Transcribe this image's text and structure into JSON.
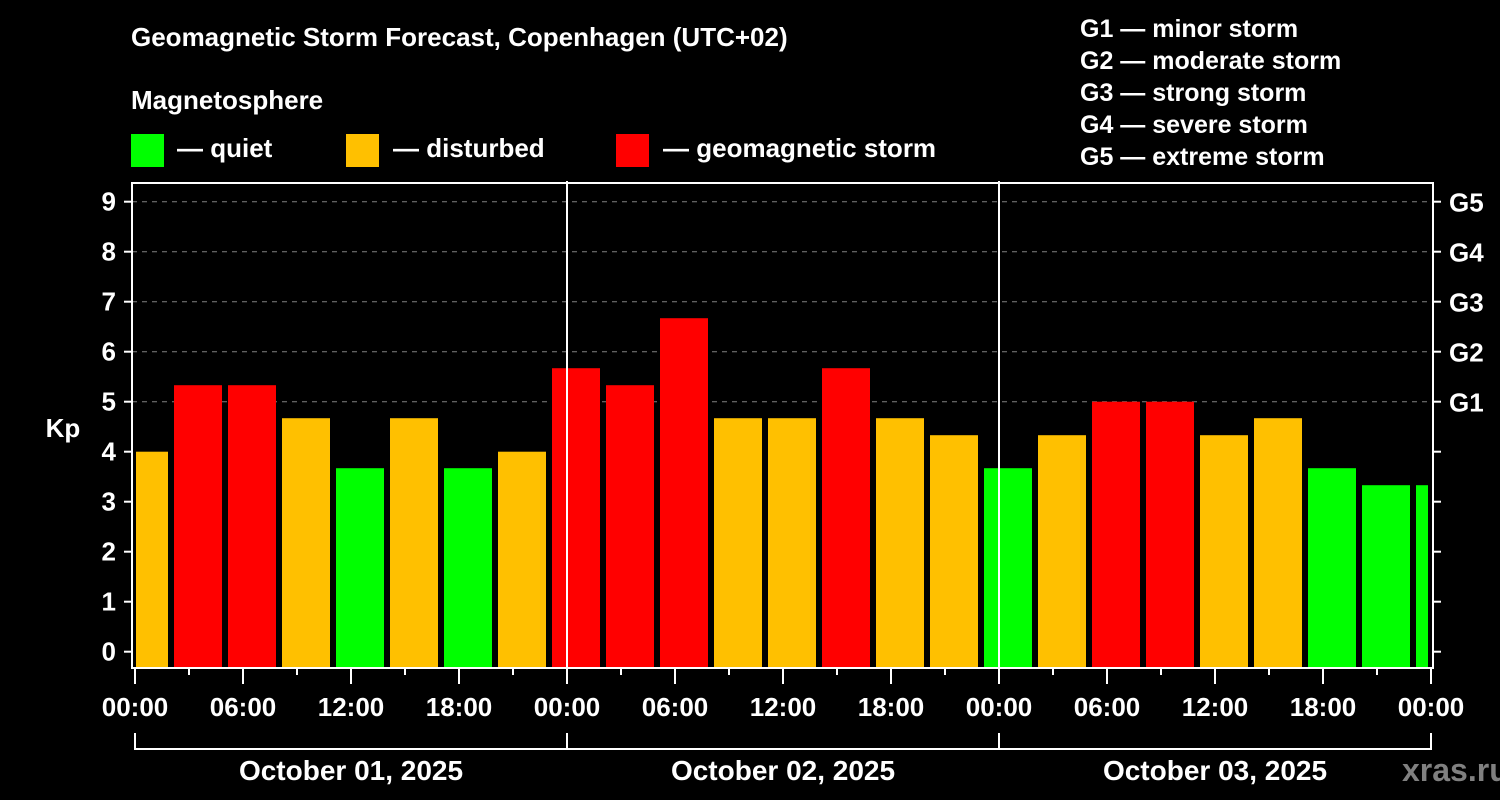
{
  "title": "Geomagnetic Storm Forecast, Copenhagen (UTC+02)",
  "legend": {
    "heading": "Magnetosphere",
    "items": [
      {
        "label": "— quiet",
        "color": "#00ff00"
      },
      {
        "label": "— disturbed",
        "color": "#ffc000"
      },
      {
        "label": "— geomagnetic storm",
        "color": "#ff0000"
      }
    ]
  },
  "g_scale": [
    "G1 — minor storm",
    "G2 — moderate storm",
    "G3 — strong storm",
    "G4 — severe storm",
    "G5 — extreme storm"
  ],
  "watermark": "xras.ru",
  "chart_data": {
    "type": "bar",
    "title": "Geomagnetic Storm Forecast, Copenhagen (UTC+02)",
    "ylabel": "Kp",
    "ylim": [
      0,
      9
    ],
    "yticks": [
      "0",
      "1",
      "2",
      "3",
      "4",
      "5",
      "6",
      "7",
      "8",
      "9"
    ],
    "right_ticks": [
      {
        "kp": 5,
        "label": "G1"
      },
      {
        "kp": 6,
        "label": "G2"
      },
      {
        "kp": 7,
        "label": "G3"
      },
      {
        "kp": 8,
        "label": "G4"
      },
      {
        "kp": 9,
        "label": "G5"
      }
    ],
    "grid": true,
    "x_range_hours": [
      0,
      72
    ],
    "xtick_labels": [
      "00:00",
      "06:00",
      "12:00",
      "18:00",
      "00:00",
      "06:00",
      "12:00",
      "18:00",
      "00:00",
      "06:00",
      "12:00",
      "18:00",
      "00:00"
    ],
    "days": [
      "October 01, 2025",
      "October 02, 2025",
      "October 03, 2025"
    ],
    "bar_interval_hours": 3,
    "first_bar_start_hour": -1,
    "values": [
      4.0,
      5.33,
      5.33,
      4.67,
      3.67,
      4.67,
      3.67,
      4.0,
      5.67,
      5.33,
      6.67,
      4.67,
      4.67,
      5.67,
      4.67,
      4.33,
      3.67,
      4.33,
      5.0,
      5.0,
      4.33,
      4.67,
      3.67,
      3.33,
      3.33
    ],
    "status": [
      "disturbed",
      "storm",
      "storm",
      "disturbed",
      "quiet",
      "disturbed",
      "quiet",
      "disturbed",
      "storm",
      "storm",
      "storm",
      "disturbed",
      "disturbed",
      "storm",
      "disturbed",
      "disturbed",
      "quiet",
      "disturbed",
      "storm",
      "storm",
      "disturbed",
      "disturbed",
      "quiet",
      "quiet",
      "quiet"
    ],
    "colors": {
      "quiet": "#00ff00",
      "disturbed": "#ffc000",
      "storm": "#ff0000"
    }
  }
}
